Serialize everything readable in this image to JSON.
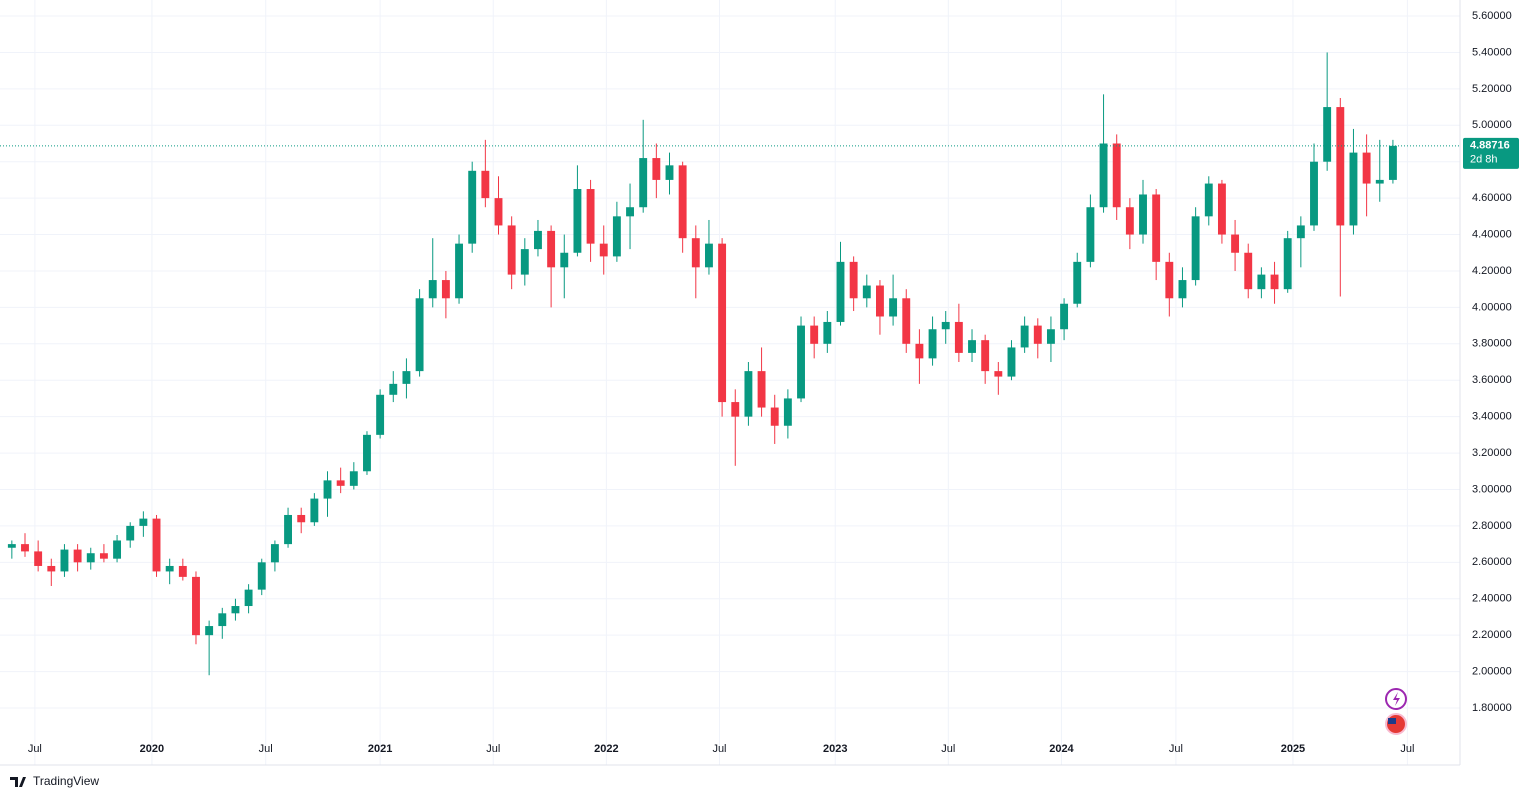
{
  "chart_data": {
    "type": "candlestick",
    "grid": true,
    "up_color": "#089981",
    "down_color": "#f23645",
    "last_price": 4.88716,
    "countdown": "2d 8h",
    "brand": "TradingView",
    "xlim": [
      -0.9,
      110.1
    ],
    "xticks": [
      {
        "value": 1.75,
        "label": "Jul"
      },
      {
        "value": 10.65,
        "label": "2020"
      },
      {
        "value": 19.3,
        "label": "Jul"
      },
      {
        "value": 28.0,
        "label": "2021"
      },
      {
        "value": 36.6,
        "label": "Jul"
      },
      {
        "value": 45.2,
        "label": "2022"
      },
      {
        "value": 53.8,
        "label": "Jul"
      },
      {
        "value": 62.6,
        "label": "2023"
      },
      {
        "value": 71.2,
        "label": "Jul"
      },
      {
        "value": 79.8,
        "label": "2024"
      },
      {
        "value": 88.5,
        "label": "Jul"
      },
      {
        "value": 97.4,
        "label": "2025"
      },
      {
        "value": 106.1,
        "label": "Jul"
      }
    ],
    "ylim": [
      1.487,
      5.688
    ],
    "yticks": [
      {
        "value": 1.8,
        "label": "1.80000"
      },
      {
        "value": 2.0,
        "label": "2.00000"
      },
      {
        "value": 2.2,
        "label": "2.20000"
      },
      {
        "value": 2.4,
        "label": "2.40000"
      },
      {
        "value": 2.6,
        "label": "2.60000"
      },
      {
        "value": 2.8,
        "label": "2.80000"
      },
      {
        "value": 3.0,
        "label": "3.00000"
      },
      {
        "value": 3.2,
        "label": "3.20000"
      },
      {
        "value": 3.4,
        "label": "3.40000"
      },
      {
        "value": 3.6,
        "label": "3.60000"
      },
      {
        "value": 3.8,
        "label": "3.80000"
      },
      {
        "value": 4.0,
        "label": "4.00000"
      },
      {
        "value": 4.2,
        "label": "4.20000"
      },
      {
        "value": 4.4,
        "label": "4.40000"
      },
      {
        "value": 4.6,
        "label": "4.60000"
      },
      {
        "value": 4.8,
        "label": "4.80000"
      },
      {
        "value": 5.0,
        "label": "5.00000"
      },
      {
        "value": 5.2,
        "label": "5.20000"
      },
      {
        "value": 5.4,
        "label": "5.40000"
      },
      {
        "value": 5.6,
        "label": "5.60000"
      }
    ],
    "ohlc": [
      [
        2.68,
        2.72,
        2.62,
        2.7
      ],
      [
        2.7,
        2.76,
        2.63,
        2.66
      ],
      [
        2.66,
        2.72,
        2.55,
        2.58
      ],
      [
        2.58,
        2.62,
        2.47,
        2.55
      ],
      [
        2.55,
        2.7,
        2.52,
        2.67
      ],
      [
        2.67,
        2.7,
        2.55,
        2.6
      ],
      [
        2.6,
        2.68,
        2.56,
        2.65
      ],
      [
        2.65,
        2.7,
        2.6,
        2.62
      ],
      [
        2.62,
        2.75,
        2.6,
        2.72
      ],
      [
        2.72,
        2.82,
        2.68,
        2.8
      ],
      [
        2.8,
        2.88,
        2.74,
        2.84
      ],
      [
        2.84,
        2.86,
        2.52,
        2.55
      ],
      [
        2.55,
        2.62,
        2.48,
        2.58
      ],
      [
        2.58,
        2.62,
        2.5,
        2.52
      ],
      [
        2.52,
        2.55,
        2.15,
        2.2
      ],
      [
        2.2,
        2.28,
        1.98,
        2.25
      ],
      [
        2.25,
        2.35,
        2.18,
        2.32
      ],
      [
        2.32,
        2.4,
        2.28,
        2.36
      ],
      [
        2.36,
        2.48,
        2.32,
        2.45
      ],
      [
        2.45,
        2.62,
        2.42,
        2.6
      ],
      [
        2.6,
        2.72,
        2.55,
        2.7
      ],
      [
        2.7,
        2.9,
        2.68,
        2.86
      ],
      [
        2.86,
        2.9,
        2.76,
        2.82
      ],
      [
        2.82,
        2.98,
        2.8,
        2.95
      ],
      [
        2.95,
        3.1,
        2.85,
        3.05
      ],
      [
        3.05,
        3.12,
        2.98,
        3.02
      ],
      [
        3.02,
        3.15,
        3.0,
        3.1
      ],
      [
        3.1,
        3.32,
        3.08,
        3.3
      ],
      [
        3.3,
        3.55,
        3.28,
        3.52
      ],
      [
        3.52,
        3.65,
        3.48,
        3.58
      ],
      [
        3.58,
        3.72,
        3.5,
        3.65
      ],
      [
        3.65,
        4.1,
        3.62,
        4.05
      ],
      [
        4.05,
        4.38,
        4.0,
        4.15
      ],
      [
        4.15,
        4.2,
        3.94,
        4.05
      ],
      [
        4.05,
        4.4,
        4.02,
        4.35
      ],
      [
        4.35,
        4.8,
        4.3,
        4.75
      ],
      [
        4.75,
        4.92,
        4.55,
        4.6
      ],
      [
        4.6,
        4.72,
        4.4,
        4.45
      ],
      [
        4.45,
        4.5,
        4.1,
        4.18
      ],
      [
        4.18,
        4.38,
        4.12,
        4.32
      ],
      [
        4.32,
        4.48,
        4.28,
        4.42
      ],
      [
        4.42,
        4.45,
        4.0,
        4.22
      ],
      [
        4.22,
        4.4,
        4.05,
        4.3
      ],
      [
        4.3,
        4.78,
        4.28,
        4.65
      ],
      [
        4.65,
        4.7,
        4.25,
        4.35
      ],
      [
        4.35,
        4.45,
        4.18,
        4.28
      ],
      [
        4.28,
        4.58,
        4.25,
        4.5
      ],
      [
        4.5,
        4.68,
        4.32,
        4.55
      ],
      [
        4.55,
        5.03,
        4.52,
        4.82
      ],
      [
        4.82,
        4.9,
        4.6,
        4.7
      ],
      [
        4.7,
        4.85,
        4.62,
        4.78
      ],
      [
        4.78,
        4.8,
        4.3,
        4.38
      ],
      [
        4.38,
        4.45,
        4.05,
        4.22
      ],
      [
        4.22,
        4.48,
        4.18,
        4.35
      ],
      [
        4.35,
        4.38,
        3.4,
        3.48
      ],
      [
        3.48,
        3.55,
        3.13,
        3.4
      ],
      [
        3.4,
        3.7,
        3.35,
        3.65
      ],
      [
        3.65,
        3.78,
        3.4,
        3.45
      ],
      [
        3.45,
        3.52,
        3.25,
        3.35
      ],
      [
        3.35,
        3.55,
        3.28,
        3.5
      ],
      [
        3.5,
        3.95,
        3.48,
        3.9
      ],
      [
        3.9,
        3.95,
        3.72,
        3.8
      ],
      [
        3.8,
        3.98,
        3.75,
        3.92
      ],
      [
        3.92,
        4.36,
        3.9,
        4.25
      ],
      [
        4.25,
        4.28,
        3.98,
        4.05
      ],
      [
        4.05,
        4.18,
        4.0,
        4.12
      ],
      [
        4.12,
        4.15,
        3.85,
        3.95
      ],
      [
        3.95,
        4.18,
        3.9,
        4.05
      ],
      [
        4.05,
        4.1,
        3.75,
        3.8
      ],
      [
        3.8,
        3.88,
        3.58,
        3.72
      ],
      [
        3.72,
        3.95,
        3.68,
        3.88
      ],
      [
        3.88,
        3.98,
        3.8,
        3.92
      ],
      [
        3.92,
        4.02,
        3.7,
        3.75
      ],
      [
        3.75,
        3.88,
        3.7,
        3.82
      ],
      [
        3.82,
        3.85,
        3.58,
        3.65
      ],
      [
        3.65,
        3.7,
        3.52,
        3.62
      ],
      [
        3.62,
        3.82,
        3.6,
        3.78
      ],
      [
        3.78,
        3.95,
        3.75,
        3.9
      ],
      [
        3.9,
        3.94,
        3.72,
        3.8
      ],
      [
        3.8,
        3.95,
        3.7,
        3.88
      ],
      [
        3.88,
        4.05,
        3.82,
        4.02
      ],
      [
        4.02,
        4.3,
        4.0,
        4.25
      ],
      [
        4.25,
        4.62,
        4.22,
        4.55
      ],
      [
        4.55,
        5.17,
        4.52,
        4.9
      ],
      [
        4.9,
        4.95,
        4.48,
        4.55
      ],
      [
        4.55,
        4.6,
        4.32,
        4.4
      ],
      [
        4.4,
        4.7,
        4.35,
        4.62
      ],
      [
        4.62,
        4.65,
        4.15,
        4.25
      ],
      [
        4.25,
        4.3,
        3.95,
        4.05
      ],
      [
        4.05,
        4.22,
        4.0,
        4.15
      ],
      [
        4.15,
        4.55,
        4.12,
        4.5
      ],
      [
        4.5,
        4.72,
        4.45,
        4.68
      ],
      [
        4.68,
        4.7,
        4.35,
        4.4
      ],
      [
        4.4,
        4.48,
        4.2,
        4.3
      ],
      [
        4.3,
        4.35,
        4.05,
        4.1
      ],
      [
        4.1,
        4.22,
        4.05,
        4.18
      ],
      [
        4.18,
        4.25,
        4.02,
        4.1
      ],
      [
        4.1,
        4.42,
        4.08,
        4.38
      ],
      [
        4.38,
        4.5,
        4.22,
        4.45
      ],
      [
        4.45,
        4.9,
        4.42,
        4.8
      ],
      [
        4.8,
        5.4,
        4.75,
        5.1
      ],
      [
        5.1,
        5.15,
        4.06,
        4.45
      ],
      [
        4.45,
        4.98,
        4.4,
        4.85
      ],
      [
        4.85,
        4.95,
        4.5,
        4.68
      ],
      [
        4.68,
        4.92,
        4.58,
        4.7
      ],
      [
        4.7,
        4.92,
        4.68,
        4.88716
      ]
    ]
  }
}
